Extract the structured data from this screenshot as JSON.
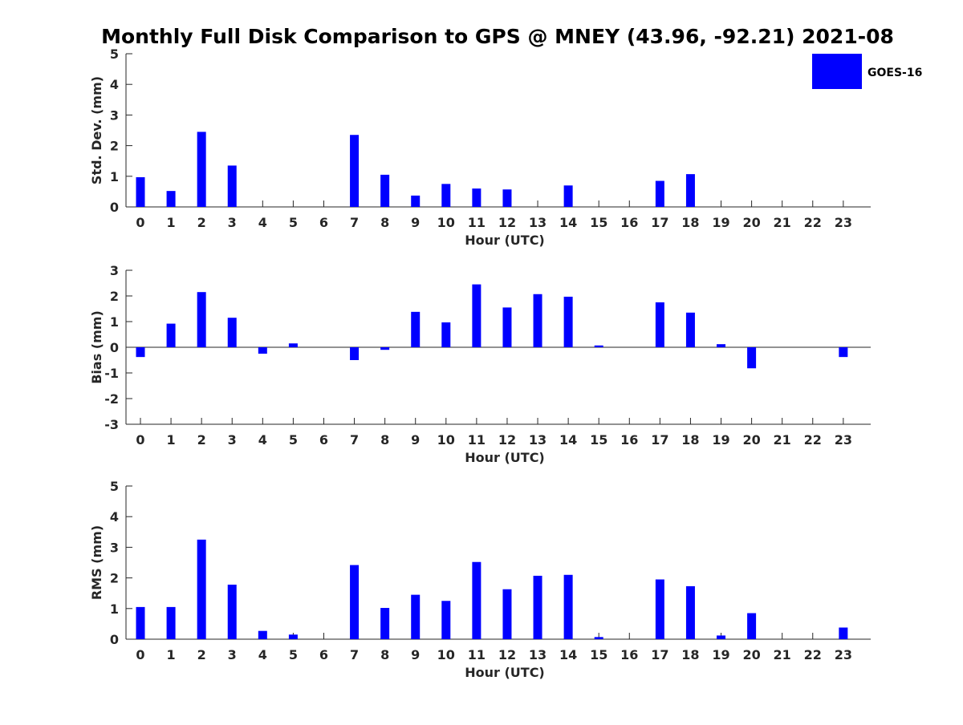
{
  "chart_data": {
    "title": "Monthly Full Disk Comparison to GPS @ MNEY (43.96, -92.21) 2021-08",
    "legend": {
      "label": "GOES-16",
      "color": "#0000ff",
      "placement": "top-right"
    },
    "bar_color": "#0000ff",
    "panels": [
      {
        "type": "bar",
        "name": "std",
        "xlabel": "Hour (UTC)",
        "ylabel": "Std. Dev. (mm)",
        "ylim": [
          0,
          5
        ],
        "yticks": [
          0,
          1,
          2,
          3,
          4,
          5
        ],
        "categories": [
          "0",
          "1",
          "2",
          "3",
          "4",
          "5",
          "6",
          "7",
          "8",
          "9",
          "10",
          "11",
          "12",
          "13",
          "14",
          "15",
          "16",
          "17",
          "18",
          "19",
          "20",
          "21",
          "22",
          "23"
        ],
        "values": [
          0.97,
          0.52,
          2.45,
          1.35,
          0,
          0,
          0,
          2.35,
          1.05,
          0.37,
          0.75,
          0.6,
          0.57,
          0,
          0.7,
          0,
          0,
          0.85,
          1.07,
          0,
          0,
          0,
          0,
          0
        ]
      },
      {
        "type": "bar",
        "name": "bias",
        "xlabel": "Hour (UTC)",
        "ylabel": "Bias (mm)",
        "ylim": [
          -3,
          3
        ],
        "yticks": [
          -3,
          -2,
          -1,
          0,
          1,
          2,
          3
        ],
        "categories": [
          "0",
          "1",
          "2",
          "3",
          "4",
          "5",
          "6",
          "7",
          "8",
          "9",
          "10",
          "11",
          "12",
          "13",
          "14",
          "15",
          "16",
          "17",
          "18",
          "19",
          "20",
          "21",
          "22",
          "23"
        ],
        "values": [
          -0.38,
          0.92,
          2.15,
          1.15,
          -0.25,
          0.15,
          0,
          -0.5,
          -0.1,
          1.38,
          0.97,
          2.45,
          1.55,
          2.07,
          1.97,
          0.07,
          0,
          1.75,
          1.35,
          0.12,
          -0.82,
          0,
          0,
          -0.38
        ]
      },
      {
        "type": "bar",
        "name": "rms",
        "xlabel": "Hour (UTC)",
        "ylabel": "RMS (mm)",
        "ylim": [
          0,
          5
        ],
        "yticks": [
          0,
          1,
          2,
          3,
          4,
          5
        ],
        "categories": [
          "0",
          "1",
          "2",
          "3",
          "4",
          "5",
          "6",
          "7",
          "8",
          "9",
          "10",
          "11",
          "12",
          "13",
          "14",
          "15",
          "16",
          "17",
          "18",
          "19",
          "20",
          "21",
          "22",
          "23"
        ],
        "values": [
          1.05,
          1.05,
          3.25,
          1.78,
          0.27,
          0.15,
          0,
          2.42,
          1.02,
          1.45,
          1.25,
          2.52,
          1.63,
          2.07,
          2.1,
          0.07,
          0,
          1.95,
          1.73,
          0.12,
          0.85,
          0,
          0,
          0.38
        ]
      }
    ]
  }
}
